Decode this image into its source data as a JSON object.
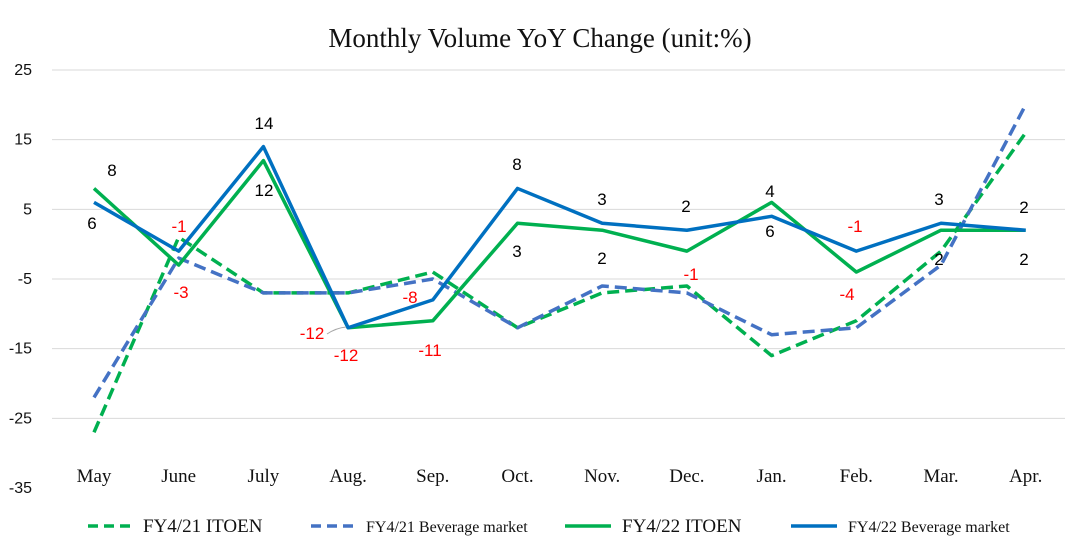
{
  "chart_data": {
    "type": "line",
    "title": "Monthly Volume YoY Change (unit:%)",
    "categories": [
      "May",
      "June",
      "July",
      "Aug.",
      "Sep.",
      "Oct.",
      "Nov.",
      "Dec.",
      "Jan.",
      "Feb.",
      "Mar.",
      "Apr."
    ],
    "yticks": [
      "25",
      "15",
      "5",
      "-5",
      "-15",
      "-25",
      "-35"
    ],
    "ylim": [
      -35,
      25
    ],
    "grid": true,
    "legend_position": "bottom",
    "series": [
      {
        "name": "FY4/21 ITOEN",
        "color": "#00b050",
        "style": "dashed",
        "values": [
          -27,
          1,
          -7,
          -7,
          -4,
          -12,
          -7,
          -6,
          -16,
          -11,
          -1,
          16
        ]
      },
      {
        "name": "FY4/21 Beverage market",
        "color": "#4472c4",
        "style": "dashed",
        "values": [
          -22,
          -2,
          -7,
          -7,
          -5,
          -12,
          -6,
          -7,
          -13,
          -12,
          -3,
          20
        ]
      },
      {
        "name": "FY4/22 ITOEN",
        "color": "#00b050",
        "style": "solid",
        "values": [
          8,
          -3,
          12,
          -12,
          -11,
          3,
          2,
          -1,
          6,
          -4,
          2,
          2
        ]
      },
      {
        "name": "FY4/22 Beverage market",
        "color": "#0070c0",
        "style": "solid",
        "values": [
          6,
          -1,
          14,
          -12,
          -8,
          8,
          3,
          2,
          4,
          -1,
          3,
          2
        ]
      }
    ],
    "data_labels": [
      {
        "text": "8",
        "color": "#000000"
      },
      {
        "text": "6",
        "color": "#000000"
      },
      {
        "text": "-1",
        "color": "#ff0000"
      },
      {
        "text": "-3",
        "color": "#ff0000"
      },
      {
        "text": "14",
        "color": "#000000"
      },
      {
        "text": "12",
        "color": "#000000"
      },
      {
        "text": "-12",
        "color": "#ff0000"
      },
      {
        "text": "-12",
        "color": "#ff0000"
      },
      {
        "text": "-8",
        "color": "#ff0000"
      },
      {
        "text": "-11",
        "color": "#ff0000"
      },
      {
        "text": "8",
        "color": "#000000"
      },
      {
        "text": "3",
        "color": "#000000"
      },
      {
        "text": "3",
        "color": "#000000"
      },
      {
        "text": "2",
        "color": "#000000"
      },
      {
        "text": "2",
        "color": "#000000"
      },
      {
        "text": "-1",
        "color": "#ff0000"
      },
      {
        "text": "4",
        "color": "#000000"
      },
      {
        "text": "6",
        "color": "#000000"
      },
      {
        "text": "-1",
        "color": "#ff0000"
      },
      {
        "text": "-4",
        "color": "#ff0000"
      },
      {
        "text": "3",
        "color": "#000000"
      },
      {
        "text": "2",
        "color": "#000000"
      },
      {
        "text": "2",
        "color": "#000000"
      },
      {
        "text": "2",
        "color": "#000000"
      }
    ]
  }
}
